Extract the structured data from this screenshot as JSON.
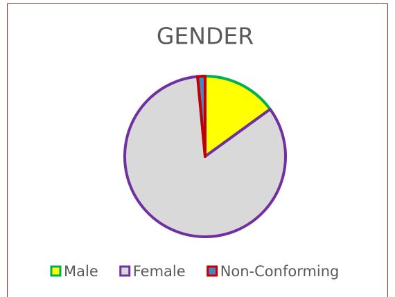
{
  "chart_data": {
    "type": "pie",
    "title": "GENDER",
    "categories": [
      "Male",
      "Female",
      "Non-Conforming"
    ],
    "values": [
      15,
      83.5,
      1.5
    ],
    "colors": [
      "#ffff00",
      "#d9d9d9",
      "#4f81bd"
    ],
    "edge_colors": [
      "#00b050",
      "#7030a0",
      "#c00000"
    ],
    "legend": "bottom"
  }
}
